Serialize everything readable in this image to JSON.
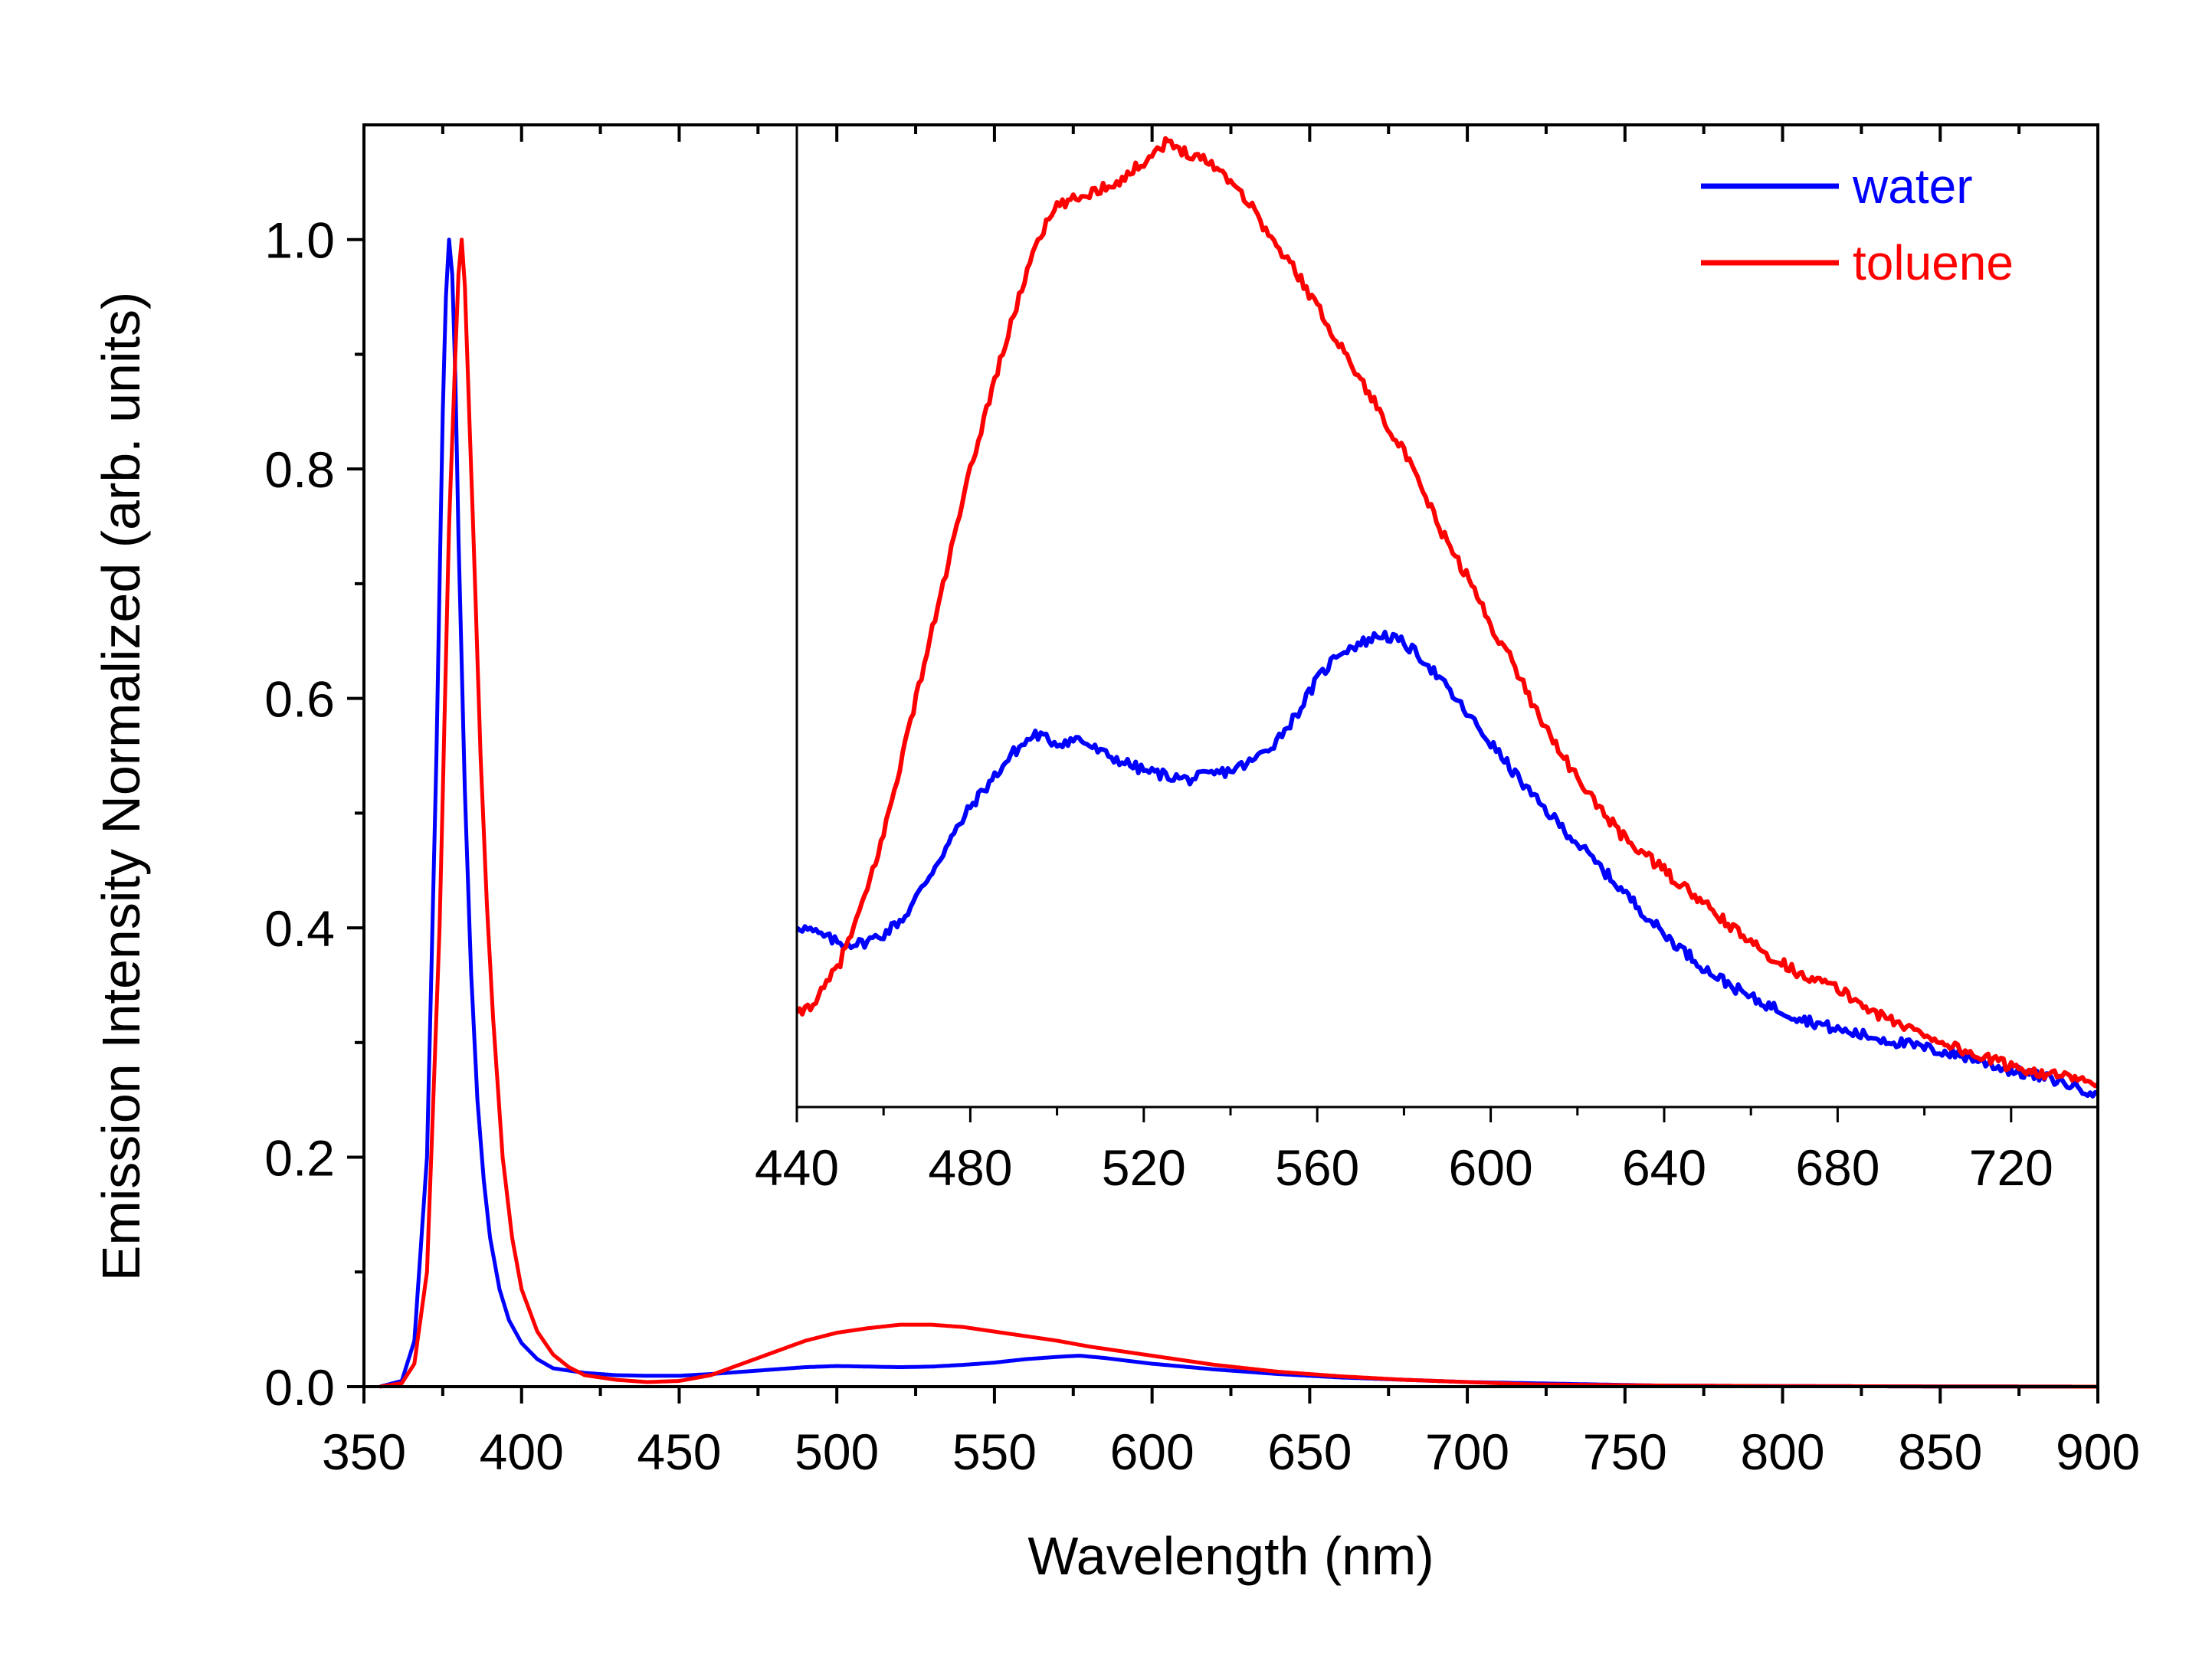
{
  "chart_data": [
    {
      "type": "line",
      "xlabel": "Wavelength (nm)",
      "ylabel": "Emission Intensity Normalized (arb. units)",
      "xlim": [
        350,
        900
      ],
      "ylim": [
        0,
        1.1
      ],
      "xticks": [
        350,
        400,
        450,
        500,
        550,
        600,
        650,
        700,
        750,
        800,
        850,
        900
      ],
      "xtick_labels": [
        "350",
        "400",
        "450",
        "500",
        "550",
        "600",
        "650",
        "700",
        "750",
        "800",
        "850",
        "900"
      ],
      "yticks": [
        0.0,
        0.2,
        0.4,
        0.6,
        0.8,
        1.0
      ],
      "ytick_labels": [
        "0.0",
        "0.2",
        "0.4",
        "0.6",
        "0.8",
        "1.0"
      ],
      "series": [
        {
          "name": "water",
          "color": "#0000ff",
          "x": [
            355,
            362,
            366,
            370,
            373,
            375,
            376,
            377,
            378,
            379,
            380,
            382,
            384,
            386,
            388,
            390,
            393,
            396,
            400,
            405,
            410,
            420,
            430,
            440,
            450,
            460,
            470,
            480,
            490,
            500,
            510,
            520,
            530,
            540,
            550,
            560,
            570,
            577,
            585,
            600,
            620,
            640,
            660,
            680,
            700,
            720,
            740,
            760,
            800,
            850,
            900
          ],
          "y": [
            0.0,
            0.005,
            0.04,
            0.2,
            0.55,
            0.85,
            0.95,
            1.0,
            0.97,
            0.88,
            0.74,
            0.52,
            0.36,
            0.25,
            0.18,
            0.13,
            0.085,
            0.058,
            0.038,
            0.024,
            0.016,
            0.012,
            0.01,
            0.0095,
            0.0095,
            0.011,
            0.013,
            0.015,
            0.017,
            0.018,
            0.0175,
            0.017,
            0.0175,
            0.019,
            0.021,
            0.024,
            0.026,
            0.027,
            0.025,
            0.02,
            0.015,
            0.011,
            0.008,
            0.006,
            0.004,
            0.003,
            0.002,
            0.001,
            0.0005,
            0.0002,
            0.0
          ]
        },
        {
          "name": "toluene",
          "color": "#ff0000",
          "x": [
            355,
            362,
            366,
            370,
            374,
            377,
            379,
            380,
            381,
            382,
            383,
            385,
            387,
            389,
            391,
            394,
            397,
            400,
            405,
            410,
            415,
            420,
            430,
            440,
            450,
            460,
            470,
            480,
            490,
            500,
            510,
            520,
            530,
            540,
            550,
            560,
            570,
            580,
            590,
            600,
            620,
            640,
            660,
            680,
            700,
            720,
            740,
            760,
            800,
            850,
            900
          ],
          "y": [
            0.0,
            0.003,
            0.02,
            0.1,
            0.4,
            0.75,
            0.9,
            0.97,
            1.0,
            0.96,
            0.88,
            0.72,
            0.55,
            0.42,
            0.32,
            0.2,
            0.13,
            0.085,
            0.048,
            0.028,
            0.017,
            0.01,
            0.006,
            0.004,
            0.005,
            0.01,
            0.02,
            0.03,
            0.04,
            0.047,
            0.051,
            0.054,
            0.054,
            0.052,
            0.048,
            0.044,
            0.04,
            0.035,
            0.031,
            0.027,
            0.019,
            0.013,
            0.009,
            0.006,
            0.004,
            0.002,
            0.0015,
            0.001,
            0.0005,
            0.0002,
            0.0
          ]
        }
      ]
    },
    {
      "type": "line",
      "role": "inset",
      "xlim": [
        440,
        740
      ],
      "ylim": [
        0,
        1.08
      ],
      "xticks": [
        440,
        480,
        520,
        560,
        600,
        640,
        680,
        720
      ],
      "xtick_labels": [
        "440",
        "480",
        "520",
        "560",
        "600",
        "640",
        "680",
        "720"
      ],
      "legend": {
        "position": "top-right",
        "entries": [
          {
            "label": "water",
            "color": "#0000ff"
          },
          {
            "label": "toluene",
            "color": "#ff0000"
          }
        ]
      },
      "series": [
        {
          "name": "water",
          "color": "#0000ff",
          "x": [
            440,
            445,
            450,
            455,
            460,
            465,
            470,
            475,
            480,
            485,
            490,
            495,
            500,
            505,
            510,
            515,
            520,
            525,
            530,
            535,
            540,
            545,
            550,
            555,
            560,
            565,
            570,
            575,
            580,
            585,
            590,
            595,
            600,
            605,
            610,
            620,
            630,
            640,
            650,
            660,
            670,
            680,
            690,
            700,
            710,
            720,
            730,
            740
          ],
          "y": [
            0.2,
            0.19,
            0.18,
            0.18,
            0.19,
            0.21,
            0.25,
            0.29,
            0.33,
            0.36,
            0.39,
            0.41,
            0.4,
            0.405,
            0.39,
            0.38,
            0.37,
            0.365,
            0.36,
            0.365,
            0.37,
            0.38,
            0.4,
            0.43,
            0.47,
            0.5,
            0.51,
            0.52,
            0.51,
            0.49,
            0.46,
            0.43,
            0.4,
            0.37,
            0.34,
            0.29,
            0.24,
            0.19,
            0.15,
            0.12,
            0.1,
            0.085,
            0.075,
            0.065,
            0.055,
            0.04,
            0.03,
            0.015
          ]
        },
        {
          "name": "toluene",
          "color": "#ff0000",
          "x": [
            440,
            445,
            450,
            455,
            460,
            465,
            470,
            475,
            480,
            485,
            490,
            495,
            500,
            505,
            510,
            515,
            520,
            525,
            530,
            535,
            540,
            545,
            550,
            555,
            560,
            565,
            570,
            575,
            580,
            585,
            590,
            595,
            600,
            605,
            610,
            615,
            620,
            625,
            630,
            640,
            650,
            660,
            670,
            680,
            690,
            700,
            710,
            720,
            730,
            740
          ],
          "y": [
            0.1,
            0.12,
            0.16,
            0.22,
            0.3,
            0.4,
            0.5,
            0.6,
            0.7,
            0.79,
            0.87,
            0.95,
            0.99,
            1.0,
            1.01,
            1.02,
            1.04,
            1.06,
            1.05,
            1.04,
            1.02,
            0.99,
            0.95,
            0.92,
            0.88,
            0.84,
            0.8,
            0.76,
            0.72,
            0.67,
            0.62,
            0.58,
            0.53,
            0.49,
            0.44,
            0.4,
            0.36,
            0.33,
            0.3,
            0.26,
            0.22,
            0.18,
            0.15,
            0.13,
            0.1,
            0.08,
            0.06,
            0.045,
            0.035,
            0.025
          ]
        }
      ]
    }
  ]
}
